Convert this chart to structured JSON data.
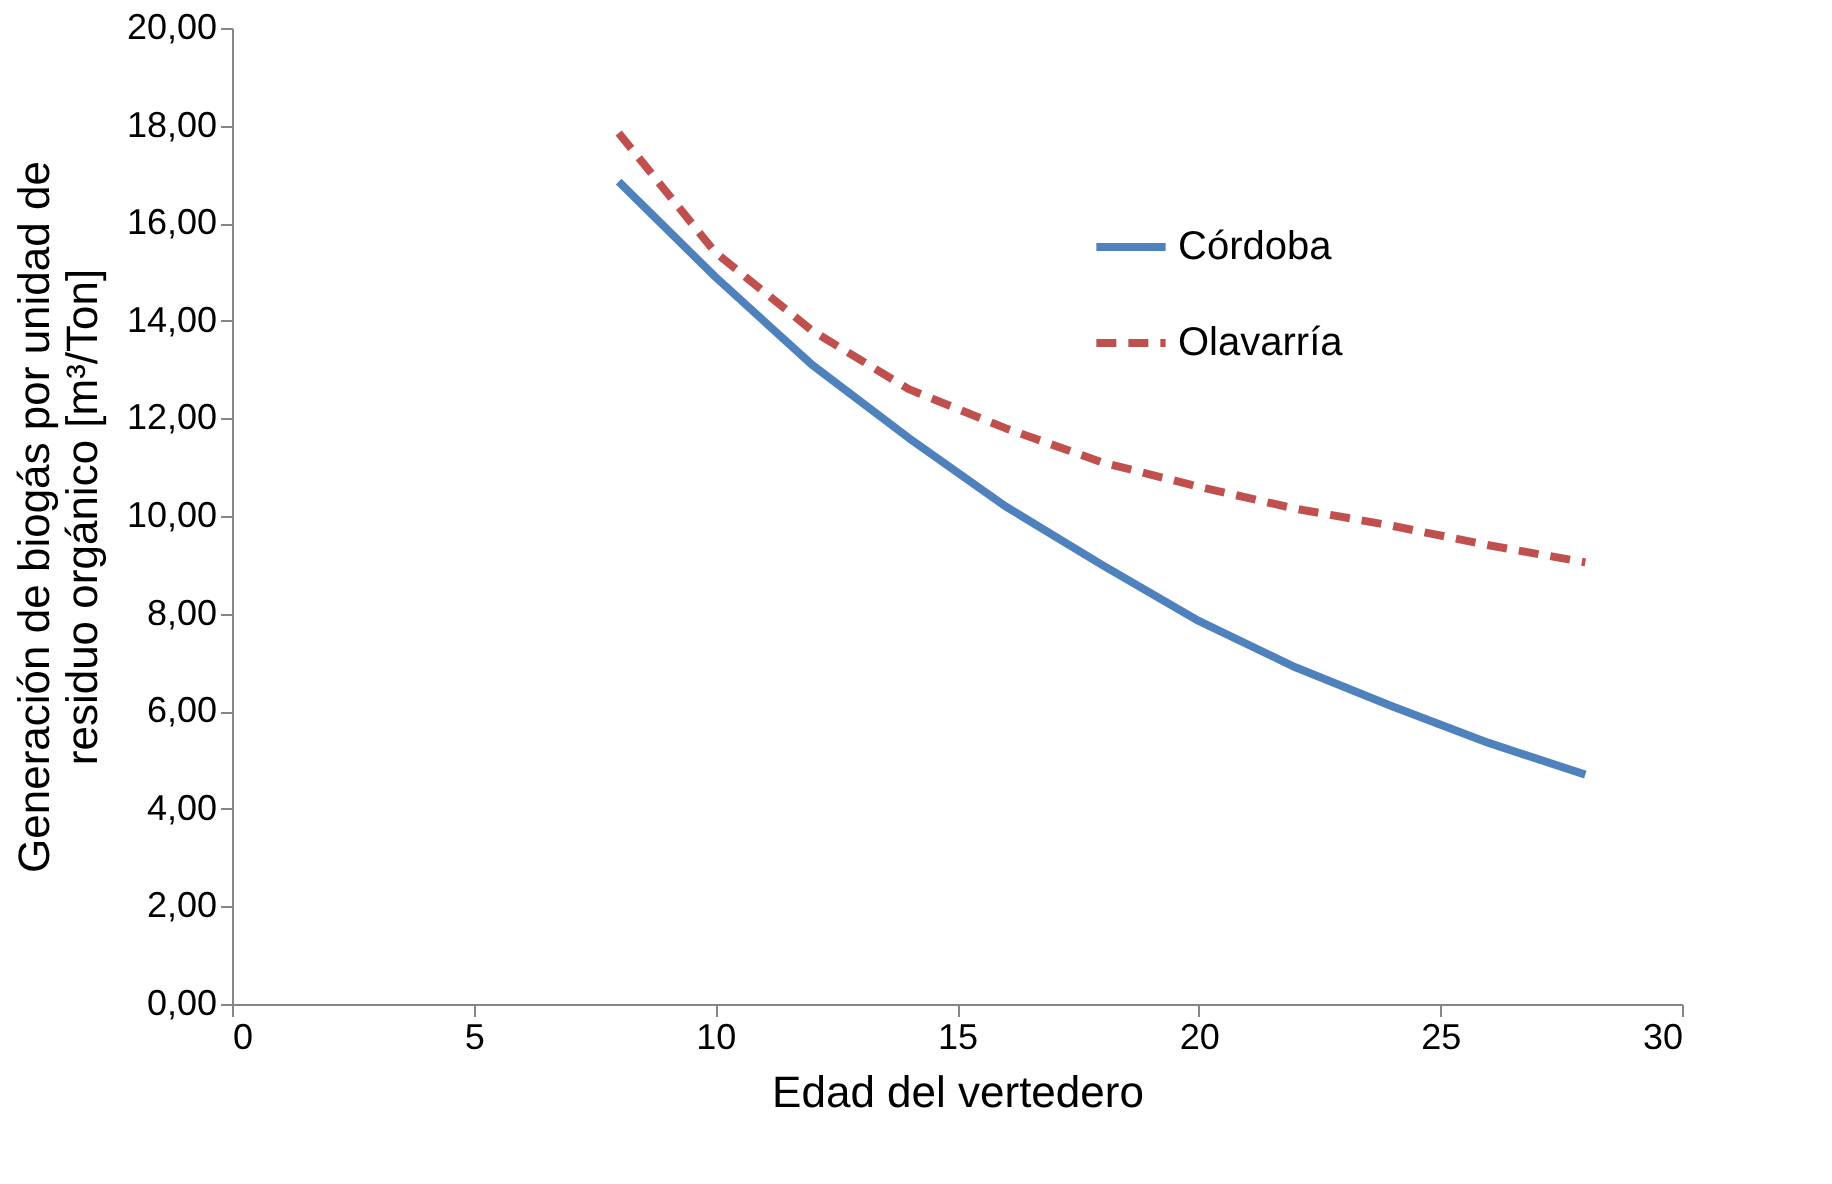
{
  "chart_data": {
    "type": "line",
    "xlabel": "Edad del vertedero",
    "ylabel": "Generación de biogás por unidad de\nresiduo orgánico [m³/Ton]",
    "x": [
      8,
      10,
      12,
      14,
      16,
      18,
      20,
      22,
      24,
      26,
      28
    ],
    "series": [
      {
        "name": "Córdoba",
        "color": "#4f81bd",
        "line_style": "solid",
        "values": [
          16.85,
          14.9,
          13.1,
          11.6,
          10.2,
          9.0,
          7.85,
          6.9,
          6.1,
          5.35,
          4.7
        ]
      },
      {
        "name": "Olavarría",
        "color": "#c0504d",
        "line_style": "dashed",
        "values": [
          17.85,
          15.4,
          13.8,
          12.6,
          11.8,
          11.1,
          10.6,
          10.15,
          9.8,
          9.4,
          9.05
        ]
      }
    ],
    "xlim": [
      0,
      30
    ],
    "xticks": [
      0,
      5,
      10,
      15,
      20,
      25,
      30
    ],
    "ylim": [
      0,
      20
    ],
    "yticks": [
      {
        "value": 0,
        "label": "0,00"
      },
      {
        "value": 2,
        "label": "2,00"
      },
      {
        "value": 4,
        "label": "4,00"
      },
      {
        "value": 6,
        "label": "6,00"
      },
      {
        "value": 8,
        "label": "8,00"
      },
      {
        "value": 10,
        "label": "10,00"
      },
      {
        "value": 12,
        "label": "12,00"
      },
      {
        "value": 14,
        "label": "14,00"
      },
      {
        "value": 16,
        "label": "16,00"
      },
      {
        "value": 18,
        "label": "18,00"
      },
      {
        "value": 20,
        "label": "20,00"
      }
    ],
    "grid": false,
    "legend": "top right",
    "marker": "none"
  }
}
